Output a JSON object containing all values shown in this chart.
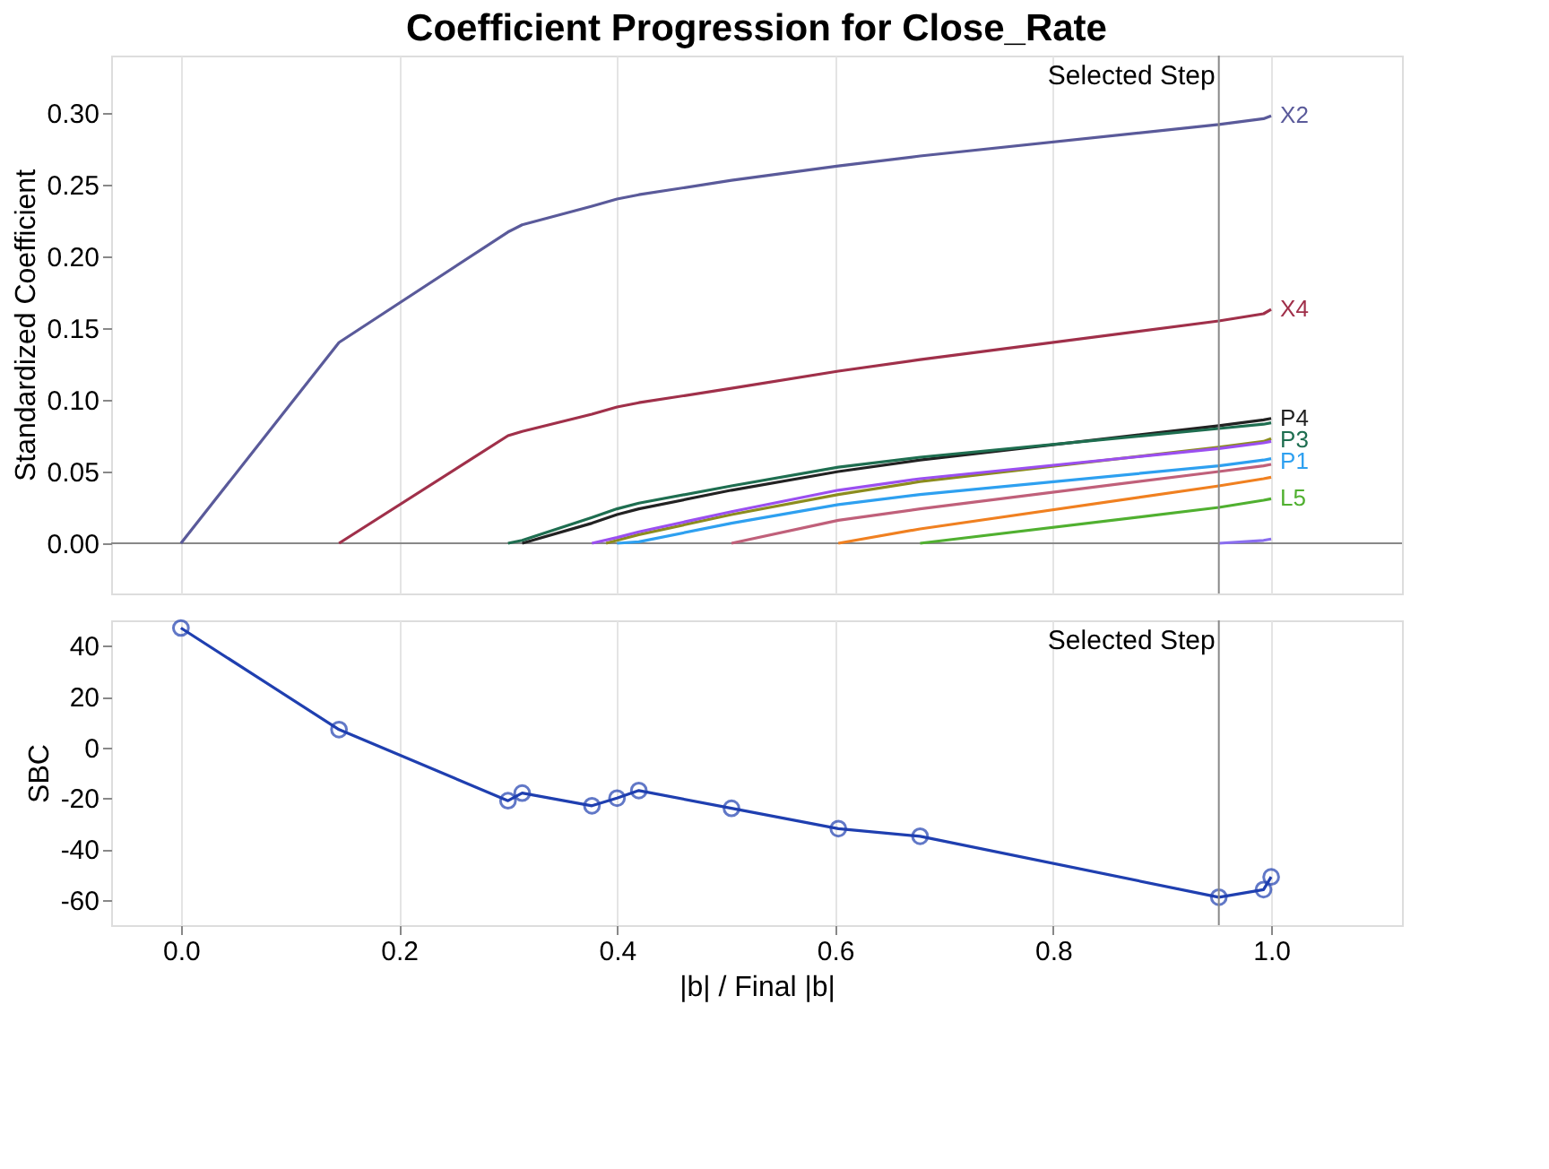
{
  "chart_data": [
    {
      "type": "line",
      "title": "Coefficient Progression for Close_Rate",
      "ylabel": "Standardized Coefficient",
      "x": [
        0,
        0.145,
        0.3,
        0.313,
        0.377,
        0.4,
        0.42,
        0.505,
        0.603,
        0.678,
        0.952,
        0.993,
        1.0
      ],
      "series": [
        {
          "name": "X2",
          "color": "#5a5a9a",
          "values": [
            0,
            0.14,
            0.217,
            0.222,
            0.235,
            0.24,
            0.243,
            0.253,
            0.263,
            0.27,
            0.292,
            0.296,
            0.298
          ]
        },
        {
          "name": "X4",
          "color": "#a0304a",
          "values": [
            null,
            0,
            0.075,
            0.078,
            0.09,
            0.095,
            0.098,
            0.108,
            0.12,
            0.128,
            0.155,
            0.16,
            0.163
          ]
        },
        {
          "name": "P4",
          "color": "#222222",
          "values": [
            null,
            null,
            null,
            0,
            0.014,
            0.02,
            0.024,
            0.037,
            0.05,
            0.058,
            0.082,
            0.086,
            0.087
          ]
        },
        {
          "name": "P3",
          "color": "#1e6e50",
          "values": [
            null,
            null,
            0,
            0.002,
            0.018,
            0.024,
            0.028,
            0.04,
            0.053,
            0.06,
            0.08,
            0.083,
            0.084
          ]
        },
        {
          "color": "#8c8c1e",
          "x": [
            0.39,
            0.4,
            0.42,
            0.505,
            0.603,
            0.678,
            0.952,
            0.993,
            1.0
          ],
          "values": [
            0,
            0.002,
            0.006,
            0.02,
            0.034,
            0.043,
            0.067,
            0.071,
            0.073
          ]
        },
        {
          "color": "#9b4ff0",
          "values": [
            null,
            null,
            null,
            null,
            0,
            0.004,
            0.008,
            0.022,
            0.037,
            0.045,
            0.066,
            0.07,
            0.071
          ]
        },
        {
          "name": "P1",
          "color": "#2ea0f0",
          "values": [
            null,
            null,
            null,
            null,
            null,
            0,
            0.001,
            0.014,
            0.027,
            0.034,
            0.054,
            0.058,
            0.059
          ]
        },
        {
          "color": "#c0607a",
          "values": [
            null,
            null,
            null,
            null,
            null,
            null,
            null,
            0,
            0.016,
            0.024,
            0.05,
            0.054,
            0.055
          ]
        },
        {
          "color": "#f08020",
          "values": [
            null,
            null,
            null,
            null,
            null,
            null,
            null,
            null,
            0,
            0.01,
            0.04,
            0.045,
            0.046
          ]
        },
        {
          "name": "L5",
          "color": "#50b030",
          "values": [
            null,
            null,
            null,
            null,
            null,
            null,
            null,
            null,
            null,
            0,
            0.025,
            0.03,
            0.031
          ]
        },
        {
          "color": "#8a6ef0",
          "values": [
            null,
            null,
            null,
            null,
            null,
            null,
            null,
            null,
            null,
            null,
            0,
            0.002,
            0.003
          ]
        }
      ],
      "xlim": [
        -0.064,
        1.12
      ],
      "ylim": [
        -0.035,
        0.34
      ],
      "yticks": [
        {
          "value": 0,
          "label": "0.00"
        },
        0.05,
        {
          "value": 0.1,
          "label": "0.10"
        },
        0.15,
        {
          "value": 0.2,
          "label": "0.20"
        },
        0.25,
        {
          "value": 0.3,
          "label": "0.30"
        }
      ],
      "ref_lines": [
        {
          "axis": "x",
          "value": 0.952,
          "label": "Selected Step",
          "color": "#888888"
        },
        {
          "axis": "y",
          "value": 0,
          "color": "#888888"
        }
      ],
      "grid": "x",
      "tick_labels": "y",
      "marker": "none"
    },
    {
      "type": "line",
      "xlabel": "|b| / Final |b|",
      "ylabel": "SBC",
      "x": [
        0,
        0.145,
        0.3,
        0.313,
        0.377,
        0.4,
        0.42,
        0.505,
        0.603,
        0.678,
        0.952,
        0.993,
        1.0
      ],
      "series": [
        {
          "color": "#1f3fb0",
          "values": [
            47,
            7,
            -21,
            -18,
            -23,
            -20,
            -17,
            -24,
            -32,
            -35,
            -59,
            -56,
            -51
          ]
        }
      ],
      "xlim": [
        -0.064,
        1.12
      ],
      "xticks": [
        {
          "value": 0,
          "label": "0.0"
        },
        0.2,
        0.4,
        0.6,
        0.8,
        {
          "value": 1,
          "label": "1.0"
        }
      ],
      "ylim": [
        -70,
        50
      ],
      "yticks": [
        -60,
        -40,
        -20,
        0,
        20,
        40
      ],
      "ref_lines": [
        {
          "axis": "x",
          "value": 0.952,
          "label": "Selected Step",
          "color": "#888888"
        }
      ],
      "grid": "x",
      "marker": "circle"
    }
  ]
}
